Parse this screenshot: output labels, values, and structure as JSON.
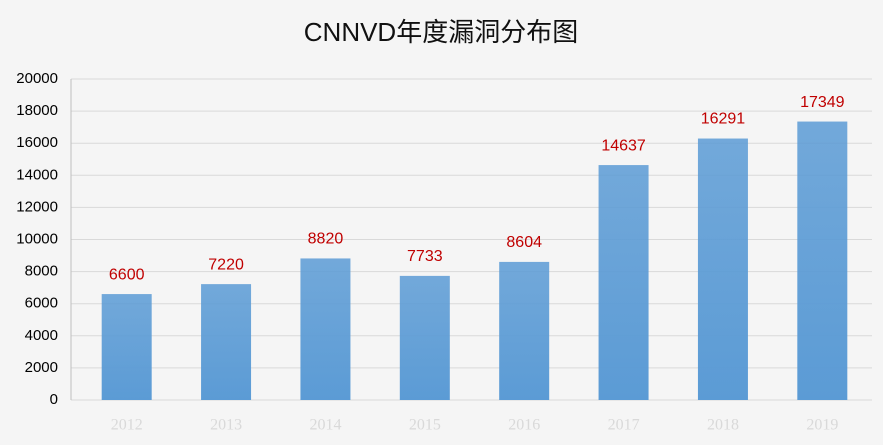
{
  "chart_data": {
    "type": "bar",
    "title": "CNNVD年度漏洞分布图",
    "categories": [
      "2012",
      "2013",
      "2014",
      "2015",
      "2016",
      "2017",
      "2018",
      "2019"
    ],
    "values": [
      6600,
      7220,
      8820,
      7733,
      8604,
      14637,
      16291,
      17349
    ],
    "color": "#5b9bd5",
    "label_color": "#c00000",
    "ylim": [
      0,
      20000
    ],
    "yticks": [
      0,
      2000,
      4000,
      6000,
      8000,
      10000,
      12000,
      14000,
      16000,
      18000,
      20000
    ],
    "grid": true
  }
}
